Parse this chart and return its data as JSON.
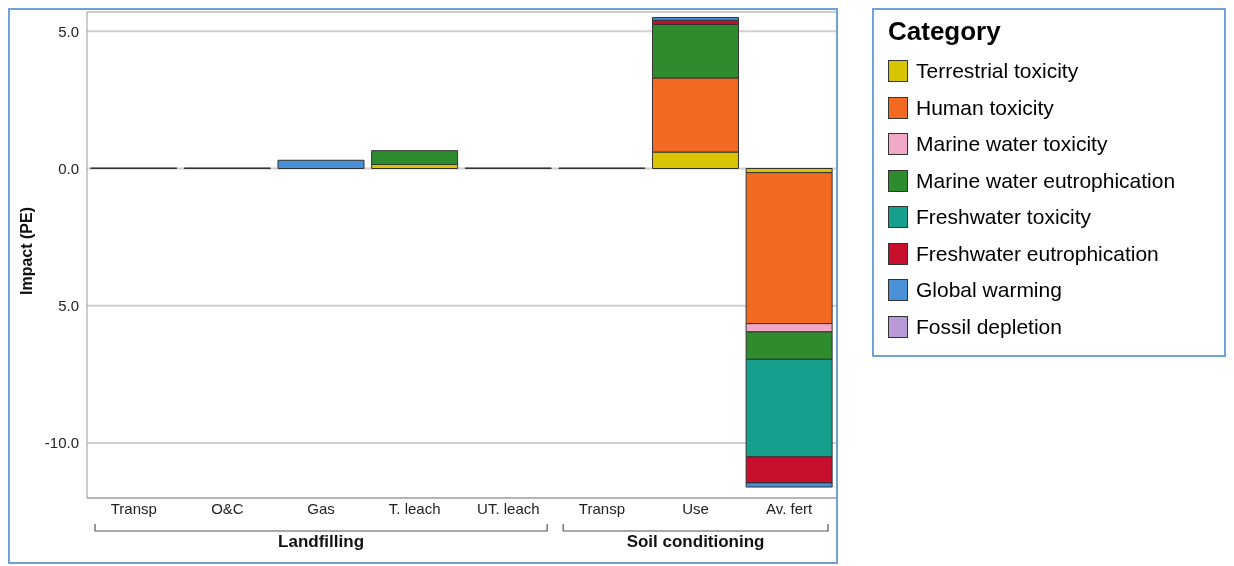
{
  "chart_data": {
    "type": "bar",
    "stacked": true,
    "ylabel": "Impact (PE)",
    "legend_title": "Category",
    "legend": "right",
    "grid": "y",
    "categories": [
      "Transp",
      "O&C",
      "Gas",
      "T. leach",
      "UT. leach",
      "Transp",
      "Use",
      "Av. fert"
    ],
    "ylim": [
      -12,
      5.7
    ],
    "yticks": [
      {
        "value": 5,
        "label": "5.0"
      },
      {
        "value": 0,
        "label": "0.0"
      },
      {
        "value": -5,
        "label": "5.0"
      },
      {
        "value": -10,
        "label": "-10.0"
      }
    ],
    "series": [
      {
        "name": "Terrestrial toxicity",
        "color": "#d8c400",
        "values": [
          null,
          null,
          null,
          0.15,
          null,
          null,
          0.6,
          -0.15
        ]
      },
      {
        "name": "Human toxicity",
        "color": "#f26a21",
        "values": [
          null,
          null,
          null,
          null,
          null,
          null,
          2.7,
          -5.5
        ]
      },
      {
        "name": "Marine water toxicity",
        "color": "#f0a8c8",
        "values": [
          null,
          null,
          null,
          null,
          null,
          null,
          null,
          -0.3
        ]
      },
      {
        "name": "Marine water eutrophication",
        "color": "#2e8b2e",
        "values": [
          null,
          null,
          null,
          0.5,
          null,
          null,
          1.95,
          -1.0
        ]
      },
      {
        "name": "Freshwater toxicity",
        "color": "#14a08c",
        "values": [
          null,
          null,
          null,
          null,
          null,
          null,
          null,
          -3.55
        ]
      },
      {
        "name": "Freshwater eutrophication",
        "color": "#c8102e",
        "values": [
          null,
          null,
          null,
          null,
          null,
          null,
          0.15,
          -0.95
        ]
      },
      {
        "name": "Global warming",
        "color": "#4a90d9",
        "values": [
          0.02,
          0.02,
          0.3,
          null,
          0.02,
          0.02,
          0.1,
          -0.15
        ]
      },
      {
        "name": "Fossil depletion",
        "color": "#b89ad8",
        "values": [
          null,
          null,
          null,
          null,
          null,
          null,
          null,
          null
        ]
      }
    ],
    "annotations": [
      "Landfilling",
      "Soil conditioning"
    ]
  }
}
